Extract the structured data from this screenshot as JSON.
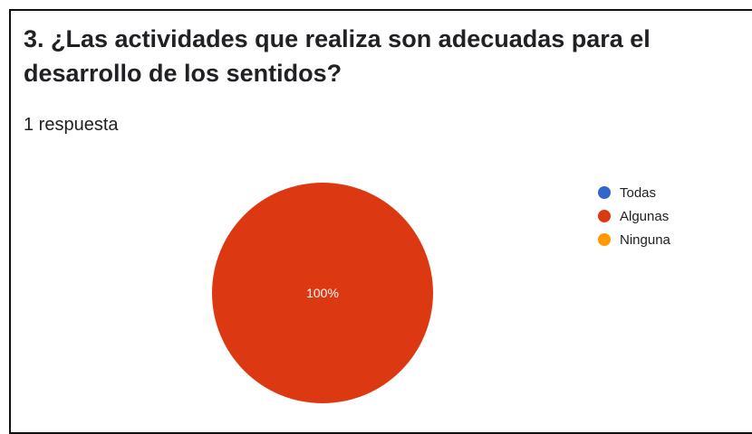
{
  "question": {
    "title": "3. ¿Las actividades que realiza son adecuadas para el desarrollo de los sentidos?",
    "responses": "1 respuesta"
  },
  "chart_data": {
    "type": "pie",
    "title": "",
    "legend_position": "right",
    "slices": [
      {
        "label": "Todas",
        "value": 0,
        "percent_label": "",
        "color": "#3366cc"
      },
      {
        "label": "Algunas",
        "value": 100,
        "percent_label": "100%",
        "color": "#dc3912"
      },
      {
        "label": "Ninguna",
        "value": 0,
        "percent_label": "",
        "color": "#ff9900"
      }
    ]
  }
}
